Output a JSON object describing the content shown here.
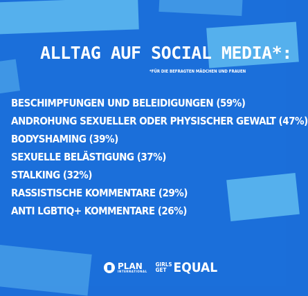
{
  "headline": "ALLTAG AUF SOCIAL MEDIA*:",
  "footnote": "*FÜR DIE BEFRAGTEN MÄDCHEN UND FRAUEN",
  "items": [
    "BESCHIMPFUNGEN UND BELEIDIGUNGEN (59%)",
    "ANDROHUNG SEXUELLER ODER PHYSISCHER GEWALT (47%)",
    "BODYSHAMING (39%)",
    "SEXUELLE BELÄSTIGUNG (37%)",
    "STALKING (32%)",
    "RASSISTISCHE KOMMENTARE (29%)",
    "ANTI LGBTIQ+ KOMMENTARE (26%)"
  ],
  "logos": {
    "plan_name": "PLAN",
    "plan_sub": "INTERNATIONAL",
    "gge_line1": "GIRLS",
    "gge_line2": "GET",
    "gge_big": "EQUAL"
  },
  "colors": {
    "background": "#1b6fda",
    "accent_streaks": "#5cb7ee",
    "text": "#ffffff"
  }
}
